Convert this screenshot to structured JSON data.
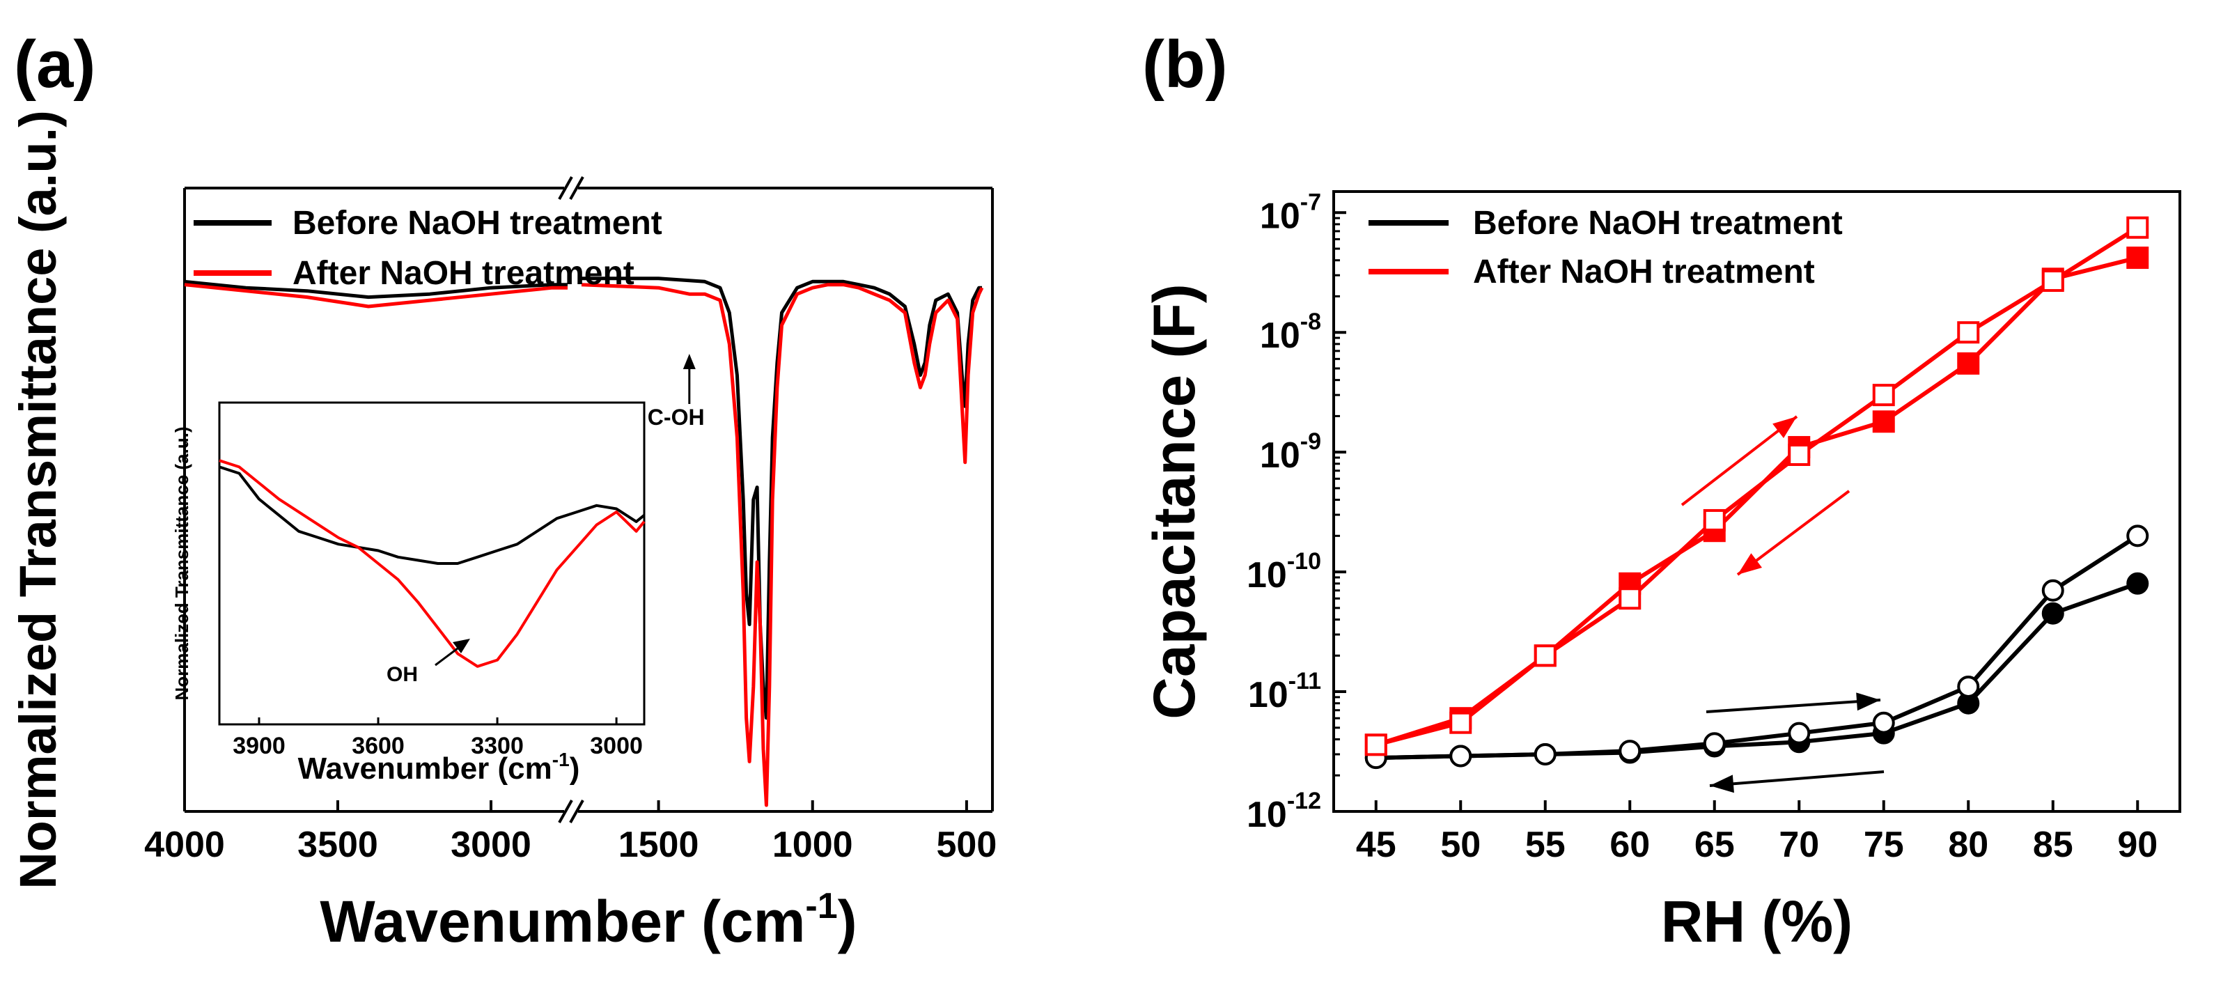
{
  "panels": {
    "a": {
      "label": "(a)"
    },
    "b": {
      "label": "(b)"
    }
  },
  "colors": {
    "before": "#000000",
    "after": "#ff0000"
  },
  "legend": {
    "before": "Before NaOH treatment",
    "after": "After NaOH treatment"
  },
  "chart_data": [
    {
      "panel": "a",
      "type": "line",
      "xlabel_main": "Wavenumber (cm",
      "xlabel_sup": "-1",
      "xlabel_close": ")",
      "ylabel": "Normalized Transmittance (a.u.)",
      "x_reversed": true,
      "broken_x_axis": true,
      "x_segments": [
        {
          "xlim": [
            4000,
            2750
          ],
          "ticks": [
            4000,
            3500,
            3000
          ]
        },
        {
          "xlim": [
            1750,
            450
          ],
          "ticks": [
            1500,
            1000,
            500
          ]
        }
      ],
      "ylim": [
        0,
        1
      ],
      "annotations": [
        {
          "text": "C-OH",
          "x": 1400
        }
      ],
      "series": [
        {
          "name": "Before NaOH treatment",
          "color": "#000000",
          "x": [
            4000,
            3800,
            3600,
            3400,
            3200,
            3000,
            2800,
            2750,
            1750,
            1500,
            1350,
            1300,
            1270,
            1245,
            1225,
            1215,
            1205,
            1192,
            1180,
            1170,
            1160,
            1150,
            1140,
            1130,
            1115,
            1100,
            1050,
            1000,
            950,
            900,
            850,
            800,
            750,
            700,
            670,
            650,
            635,
            620,
            600,
            560,
            530,
            515,
            505,
            495,
            480,
            460,
            450
          ],
          "y": [
            0.85,
            0.84,
            0.835,
            0.825,
            0.83,
            0.84,
            0.845,
            0.845,
            0.855,
            0.855,
            0.85,
            0.84,
            0.8,
            0.7,
            0.5,
            0.35,
            0.3,
            0.5,
            0.52,
            0.3,
            0.2,
            0.15,
            0.4,
            0.6,
            0.72,
            0.8,
            0.84,
            0.85,
            0.85,
            0.85,
            0.845,
            0.84,
            0.83,
            0.81,
            0.75,
            0.7,
            0.72,
            0.78,
            0.82,
            0.83,
            0.8,
            0.7,
            0.65,
            0.75,
            0.82,
            0.84,
            0.84
          ]
        },
        {
          "name": "After NaOH treatment",
          "color": "#ff0000",
          "x": [
            4000,
            3800,
            3600,
            3400,
            3200,
            3000,
            2800,
            2750,
            1750,
            1500,
            1400,
            1350,
            1300,
            1270,
            1245,
            1225,
            1215,
            1205,
            1192,
            1180,
            1170,
            1160,
            1150,
            1140,
            1130,
            1115,
            1100,
            1050,
            1000,
            950,
            900,
            850,
            800,
            750,
            700,
            670,
            650,
            635,
            620,
            600,
            560,
            530,
            515,
            505,
            495,
            480,
            460,
            450
          ],
          "y": [
            0.845,
            0.835,
            0.825,
            0.81,
            0.82,
            0.83,
            0.84,
            0.84,
            0.845,
            0.84,
            0.83,
            0.83,
            0.82,
            0.75,
            0.6,
            0.35,
            0.15,
            0.08,
            0.2,
            0.4,
            0.3,
            0.1,
            0.01,
            0.2,
            0.5,
            0.68,
            0.78,
            0.83,
            0.84,
            0.845,
            0.845,
            0.84,
            0.83,
            0.82,
            0.8,
            0.72,
            0.68,
            0.7,
            0.75,
            0.8,
            0.82,
            0.79,
            0.65,
            0.56,
            0.7,
            0.8,
            0.83,
            0.84
          ]
        }
      ],
      "inset": {
        "type": "line",
        "xlabel_main": "Wavenumber (cm",
        "xlabel_sup": "-1",
        "xlabel_close": ")",
        "ylabel": "Normalized Transmittance (a.u.)",
        "x_reversed": true,
        "xlim": [
          4000,
          2930
        ],
        "ticks": [
          3900,
          3600,
          3300,
          3000
        ],
        "ylim": [
          0,
          1
        ],
        "annotations": [
          {
            "text": "OH",
            "x": 3350
          }
        ],
        "series": [
          {
            "name": "Before NaOH treatment",
            "color": "#000000",
            "x": [
              4000,
              3950,
              3900,
              3850,
              3800,
              3750,
              3700,
              3650,
              3600,
              3550,
              3500,
              3450,
              3400,
              3350,
              3300,
              3250,
              3200,
              3150,
              3100,
              3050,
              3000,
              2950,
              2930
            ],
            "y": [
              0.8,
              0.78,
              0.7,
              0.65,
              0.6,
              0.58,
              0.56,
              0.55,
              0.54,
              0.52,
              0.51,
              0.5,
              0.5,
              0.52,
              0.54,
              0.56,
              0.6,
              0.64,
              0.66,
              0.68,
              0.67,
              0.63,
              0.65
            ]
          },
          {
            "name": "After NaOH treatment",
            "color": "#ff0000",
            "x": [
              4000,
              3950,
              3900,
              3850,
              3800,
              3750,
              3700,
              3650,
              3600,
              3550,
              3500,
              3450,
              3400,
              3350,
              3300,
              3250,
              3200,
              3150,
              3100,
              3050,
              3000,
              2950,
              2930
            ],
            "y": [
              0.82,
              0.8,
              0.75,
              0.7,
              0.66,
              0.62,
              0.58,
              0.55,
              0.5,
              0.45,
              0.38,
              0.3,
              0.22,
              0.18,
              0.2,
              0.28,
              0.38,
              0.48,
              0.55,
              0.62,
              0.66,
              0.6,
              0.63
            ]
          }
        ]
      }
    },
    {
      "panel": "b",
      "type": "line",
      "xlabel": "RH (%)",
      "ylabel": "Capacitance (F)",
      "x": [
        45,
        50,
        55,
        60,
        65,
        70,
        75,
        80,
        85,
        90
      ],
      "xlim": [
        42.5,
        92.5
      ],
      "yscale": "log",
      "ylim": [
        1e-12,
        1.5e-07
      ],
      "y_ticks": [
        1e-12,
        1e-11,
        1e-10,
        1e-09,
        1e-08,
        1e-07
      ],
      "y_tick_exponents": [
        "-12",
        "-11",
        "-10",
        "-9",
        "-8",
        "-7"
      ],
      "legend_position": "top-left",
      "series": [
        {
          "name": "Before NaOH treatment",
          "color": "#000000",
          "marker": "circle-filled",
          "values": [
            2.8e-12,
            2.9e-12,
            3e-12,
            3.1e-12,
            3.5e-12,
            3.8e-12,
            4.5e-12,
            8e-12,
            4.5e-11,
            8e-11
          ]
        },
        {
          "name": "Before NaOH treatment",
          "color": "#000000",
          "marker": "circle-open",
          "values": [
            2.8e-12,
            2.9e-12,
            3e-12,
            3.2e-12,
            3.7e-12,
            4.5e-12,
            5.5e-12,
            1.1e-11,
            7e-11,
            2e-10
          ]
        },
        {
          "name": "After NaOH treatment",
          "color": "#ff0000",
          "marker": "square-filled",
          "values": [
            3.6e-12,
            6e-12,
            2e-11,
            8e-11,
            2.2e-10,
            1.1e-09,
            1.8e-09,
            5.5e-09,
            2.8e-08,
            4.2e-08
          ]
        },
        {
          "name": "After NaOH treatment",
          "color": "#ff0000",
          "marker": "square-open",
          "values": [
            3.6e-12,
            5.5e-12,
            2e-11,
            6e-11,
            2.7e-10,
            9.5e-10,
            3e-09,
            1e-08,
            2.7e-08,
            7.5e-08
          ]
        }
      ]
    }
  ]
}
